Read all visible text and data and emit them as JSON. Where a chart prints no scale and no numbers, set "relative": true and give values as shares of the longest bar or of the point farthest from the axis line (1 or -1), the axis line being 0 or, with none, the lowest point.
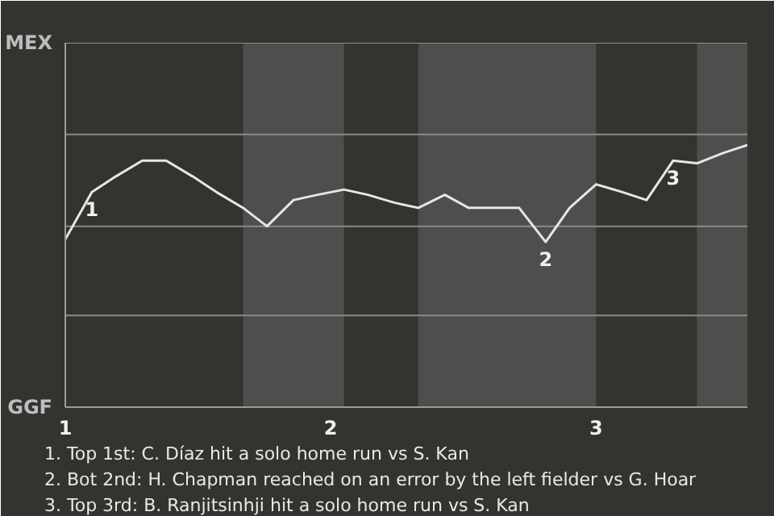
{
  "chart_data": {
    "type": "line",
    "relative": true,
    "x": [
      1.0,
      1.1,
      1.19,
      1.29,
      1.38,
      1.48,
      1.57,
      1.67,
      1.76,
      1.86,
      1.95,
      2.05,
      2.14,
      2.24,
      2.33,
      2.43,
      2.52,
      2.62,
      2.71,
      2.81,
      2.9,
      3.0,
      3.1,
      3.19,
      3.29,
      3.38,
      3.48,
      3.57
    ],
    "xlim": [
      1,
      3.57
    ],
    "xticks": [
      1,
      2,
      3
    ],
    "series": [
      {
        "color": "#e6e6e6",
        "values": [
          0.64,
          0.82,
          0.88,
          0.94,
          0.94,
          0.88,
          0.82,
          0.76,
          0.69,
          0.79,
          0.81,
          0.83,
          0.81,
          0.78,
          0.76,
          0.81,
          0.76,
          0.76,
          0.76,
          0.63,
          0.76,
          0.85,
          0.82,
          0.79,
          0.94,
          0.93,
          0.97,
          1
        ]
      }
    ],
    "marker": "none",
    "line_style": "solid",
    "ref_lines": [
      {
        "axis": "y",
        "value": 0.35,
        "color": "#8a8a88"
      },
      {
        "axis": "y",
        "value": 0.69,
        "color": "#8a8a88"
      },
      {
        "axis": "y",
        "value": 1.04,
        "color": "#8a8a88"
      },
      {
        "axis": "y",
        "value": 1.39,
        "color": "#8a8a88"
      }
    ],
    "bands": [
      {
        "axis": "x",
        "from": 1.67,
        "to": 2.05,
        "color": "#4f4e4c"
      },
      {
        "axis": "x",
        "from": 2.33,
        "to": 3.0,
        "color": "#4f4e4c"
      },
      {
        "axis": "x",
        "from": 3.38,
        "to": 3.57,
        "color": "#4f4e4c"
      }
    ],
    "annotations": [
      "MEX",
      "GGF",
      {
        "text": "1",
        "x": 1.1,
        "y": 0.82
      },
      {
        "text": "2",
        "x": 2.81,
        "y": 0.63
      },
      {
        "text": "3",
        "x": 3.29,
        "y": 0.94
      },
      "1. Top 1st: C. Díaz hit a solo home run vs S. Kan",
      "2. Bot 2nd: H. Chapman reached on an error by the left fielder vs G. Hoar",
      "3. Top 3rd: B. Ranjitsinhji hit a solo home run vs S. Kan"
    ]
  }
}
